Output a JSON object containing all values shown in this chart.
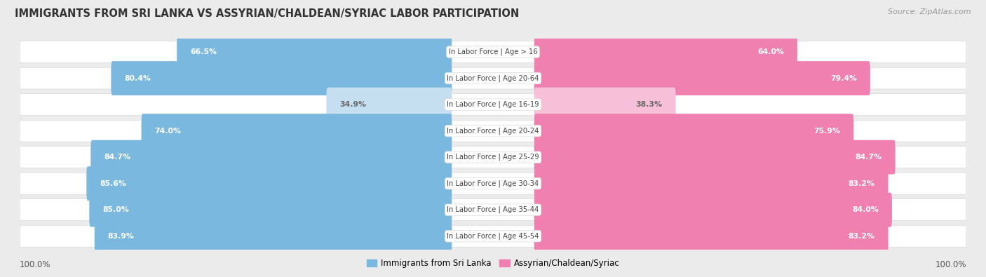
{
  "title": "IMMIGRANTS FROM SRI LANKA VS ASSYRIAN/CHALDEAN/SYRIAC LABOR PARTICIPATION",
  "source": "Source: ZipAtlas.com",
  "categories": [
    "In Labor Force | Age > 16",
    "In Labor Force | Age 20-64",
    "In Labor Force | Age 16-19",
    "In Labor Force | Age 20-24",
    "In Labor Force | Age 25-29",
    "In Labor Force | Age 30-34",
    "In Labor Force | Age 35-44",
    "In Labor Force | Age 45-54"
  ],
  "sri_lanka_values": [
    66.5,
    80.4,
    34.9,
    74.0,
    84.7,
    85.6,
    85.0,
    83.9
  ],
  "assyrian_values": [
    64.0,
    79.4,
    38.3,
    75.9,
    84.7,
    83.2,
    84.0,
    83.2
  ],
  "sri_lanka_color_strong": "#7ab8e0",
  "sri_lanka_color_light": "#c5dff0",
  "assyrian_color_strong": "#f080b0",
  "assyrian_color_light": "#f8c0d8",
  "bg_color": "#ebebeb",
  "row_bg": "#ffffff",
  "label_color_dark": "#666666",
  "label_color_white": "#ffffff",
  "max_val": 100.0,
  "legend_sri_lanka": "Immigrants from Sri Lanka",
  "legend_assyrian": "Assyrian/Chaldean/Syriac",
  "threshold": 50
}
